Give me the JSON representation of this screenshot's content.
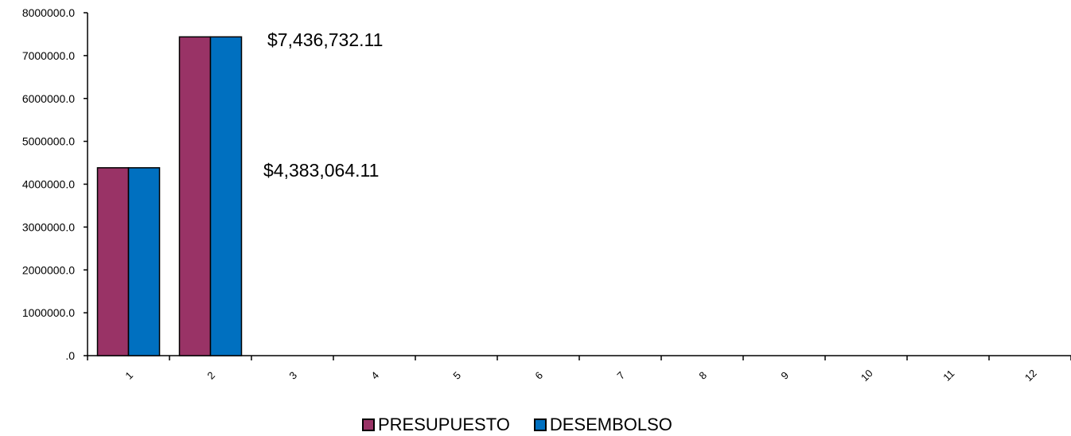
{
  "chart_data": {
    "type": "bar",
    "categories": [
      "1",
      "2",
      "3",
      "4",
      "5",
      "6",
      "7",
      "8",
      "9",
      "10",
      "11",
      "12"
    ],
    "series": [
      {
        "name": "PRESUPUESTO",
        "color": "#993366",
        "values": [
          4383064.11,
          7436732.11,
          0,
          0,
          0,
          0,
          0,
          0,
          0,
          0,
          0,
          0
        ]
      },
      {
        "name": "DESEMBOLSO",
        "color": "#0070C0",
        "values": [
          4383064.11,
          7436732.11,
          0,
          0,
          0,
          0,
          0,
          0,
          0,
          0,
          0,
          0
        ]
      }
    ],
    "yticks": [
      ".0",
      "1000000.0",
      "2000000.0",
      "3000000.0",
      "4000000.0",
      "5000000.0",
      "6000000.0",
      "7000000.0",
      "8000000.0"
    ],
    "ylim": [
      0,
      8000000
    ],
    "annotations": [
      "$7,436,732.11",
      "$4,383,064.11"
    ],
    "grid": false,
    "legend_position": "bottom"
  }
}
